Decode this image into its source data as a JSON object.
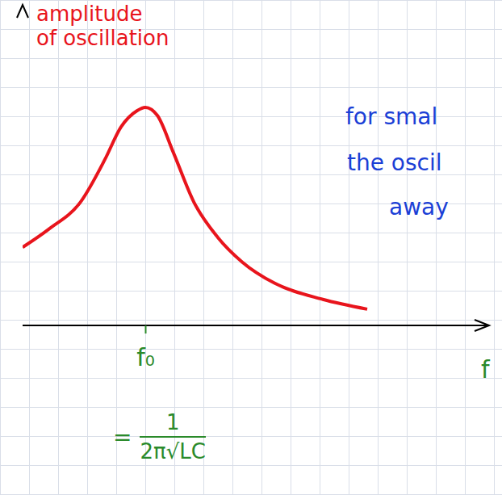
{
  "chart_data": {
    "type": "line",
    "y_label": "amplitude of oscillation",
    "x_label": "f",
    "x": [
      0,
      0.64,
      1.44,
      2.04,
      2.44,
      2.84,
      3.04,
      3.34,
      3.74,
      4.24,
      4.84,
      5.44,
      6.24,
      7.44,
      8.54
    ],
    "values": [
      2.4,
      2.95,
      3.8,
      5.1,
      6.1,
      6.6,
      6.7,
      6.45,
      5.3,
      3.8,
      2.7,
      1.95,
      1.3,
      0.8,
      0.5
    ],
    "color": "#e8141c",
    "xlim": [
      0,
      11.5
    ],
    "ylim": [
      0,
      9.8
    ],
    "xticks": [
      {
        "value": 3.05,
        "label": "f₀"
      }
    ],
    "tick_labels": "x",
    "annotations": [
      "for smal",
      "the oscil",
      "away"
    ],
    "formula": {
      "prefix": "=",
      "numerator": "1",
      "denominator": "2π√LC"
    }
  }
}
